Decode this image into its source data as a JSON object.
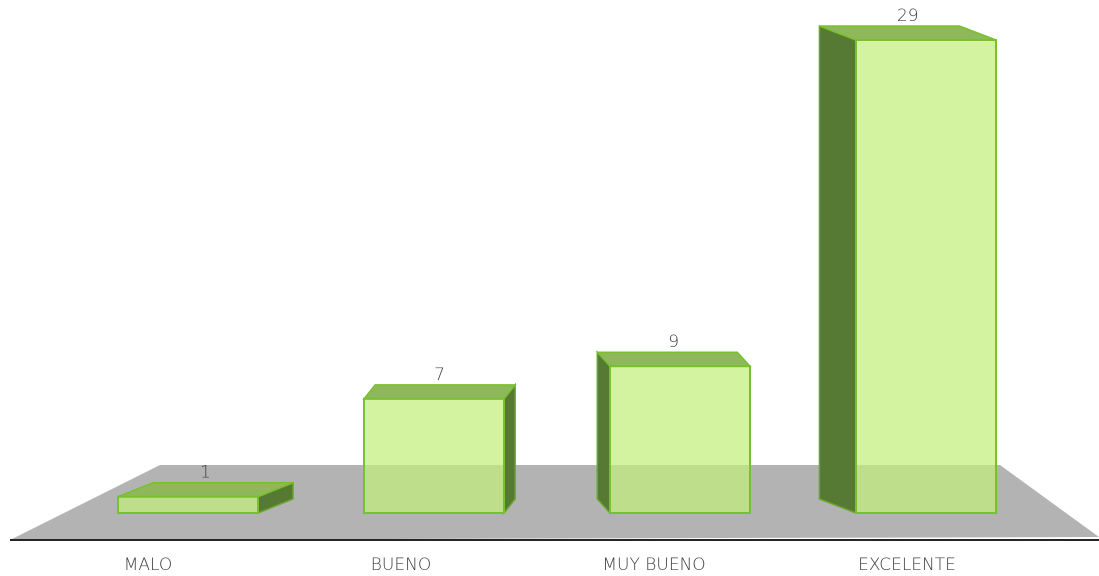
{
  "chart_data": {
    "type": "bar3d",
    "categories": [
      "MALO",
      "BUENO",
      "MUY BUENO",
      "EXCELENTE"
    ],
    "values": [
      1,
      7,
      9,
      29
    ],
    "color": "#c4ee7c"
  }
}
